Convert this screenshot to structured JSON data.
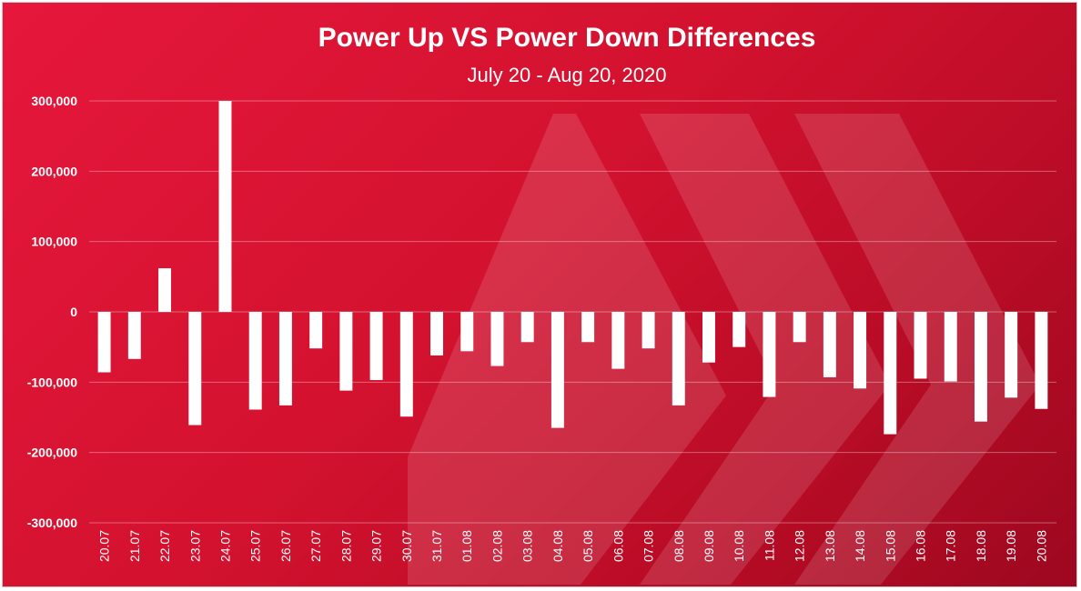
{
  "chart_data": {
    "type": "bar",
    "title": "Power Up VS Power Down Differences",
    "subtitle": "July 20 - Aug 20, 2020",
    "xlabel": "",
    "ylabel": "",
    "ylim": [
      -300000,
      300000
    ],
    "yticks": [
      300000,
      200000,
      100000,
      0,
      -100000,
      -200000,
      -300000
    ],
    "ytick_labels": [
      "300,000",
      "200,000",
      "100,000",
      "0",
      "-100,000",
      "-200,000",
      "-300,000"
    ],
    "grid": true,
    "bar_color": "#ffffff",
    "background_color": "#d3122f",
    "categories": [
      "20.07",
      "21.07",
      "22.07",
      "23.07",
      "24.07",
      "25.07",
      "26.07",
      "27.07",
      "28.07",
      "29.07",
      "30.07",
      "31.07",
      "01.08",
      "02.08",
      "03.08",
      "04.08",
      "05.08",
      "06.08",
      "07.08",
      "08.08",
      "09.08",
      "10.08",
      "11.08",
      "12.08",
      "13.08",
      "14.08",
      "15.08",
      "16.08",
      "17.08",
      "18.08",
      "19.08",
      "20.08"
    ],
    "values": [
      -86000,
      -67000,
      62000,
      -161000,
      300000,
      -139000,
      -133000,
      -52000,
      -112000,
      -97000,
      -149000,
      -62000,
      -56000,
      -77000,
      -43000,
      -165000,
      -43000,
      -81000,
      -52000,
      -133000,
      -72000,
      -50000,
      -121000,
      -43000,
      -93000,
      -109000,
      -174000,
      -95000,
      -99000,
      -156000,
      -122000,
      -138000
    ]
  }
}
